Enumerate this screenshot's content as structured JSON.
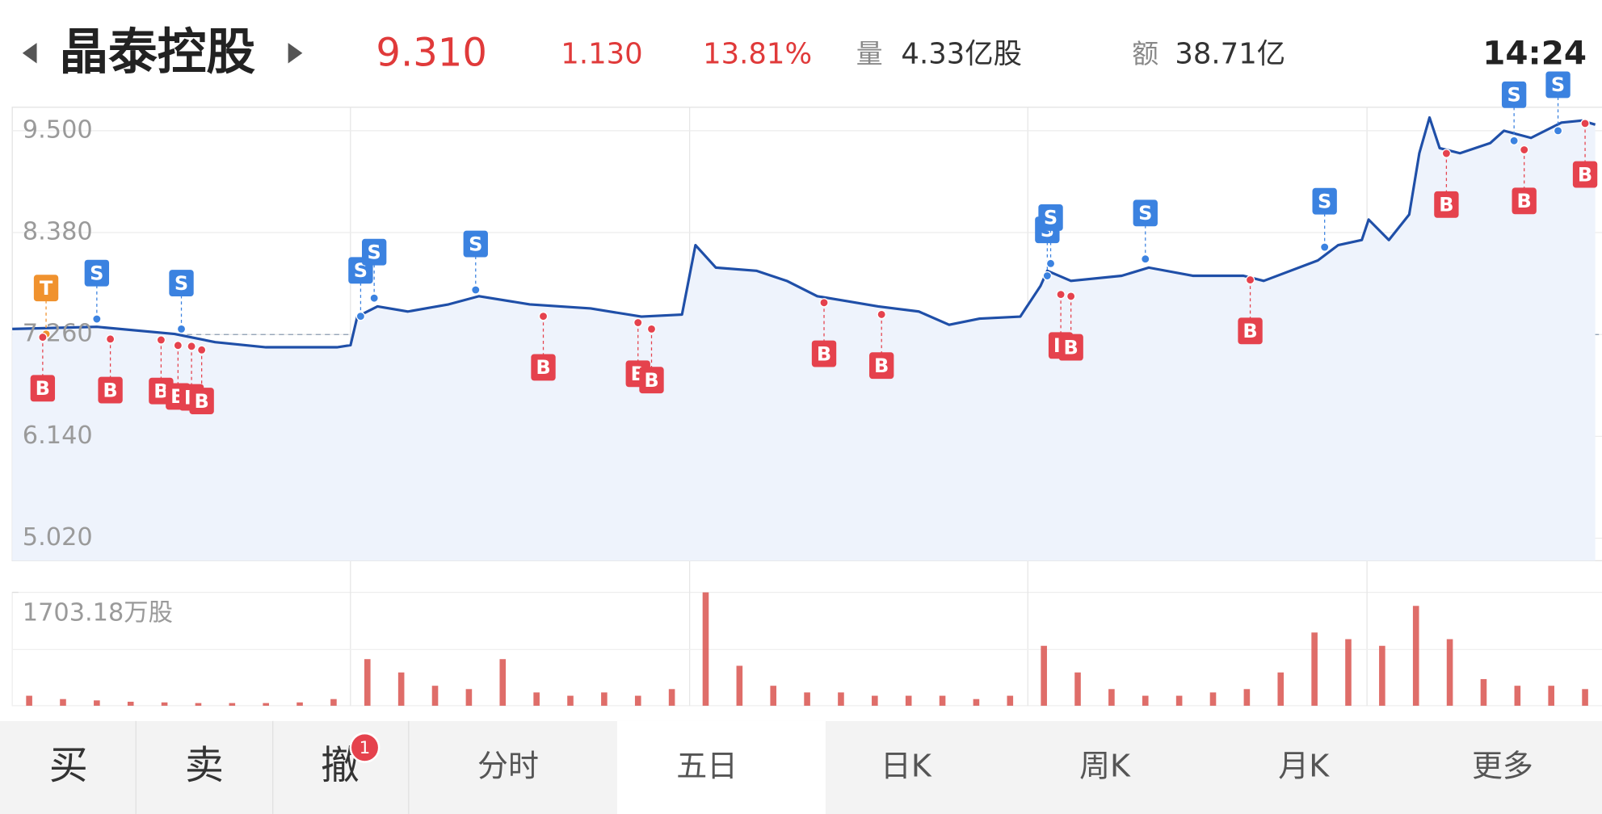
{
  "header": {
    "name": "晶泰控股",
    "price": "9.310",
    "change": "1.130",
    "change_pct": "13.81%",
    "volume_label": "量",
    "volume": "4.33亿股",
    "amount_label": "额",
    "amount": "38.71亿",
    "time": "14:24"
  },
  "chart_data": [
    {
      "type": "line",
      "color": "#1f4fa8",
      "x": [
        0,
        0.25,
        0.48,
        0.6,
        0.75,
        0.96,
        1.0,
        1.02,
        1.08,
        1.17,
        1.29,
        1.38,
        1.53,
        1.71,
        1.86,
        1.98,
        2.02,
        2.08,
        2.2,
        2.29,
        2.38,
        2.47,
        2.56,
        2.68,
        2.77,
        2.86,
        2.98,
        3.04,
        3.06,
        3.13,
        3.28,
        3.36,
        3.49,
        3.64,
        3.7,
        3.86,
        3.92,
        3.99,
        4.01,
        4.07,
        4.13,
        4.16,
        4.19,
        4.22,
        4.28,
        4.37,
        4.41,
        4.49,
        4.58,
        4.64,
        4.68
      ],
      "values": [
        7.321,
        7.344,
        7.265,
        7.176,
        7.119,
        7.119,
        7.142,
        7.456,
        7.569,
        7.512,
        7.591,
        7.681,
        7.591,
        7.546,
        7.456,
        7.479,
        8.242,
        7.995,
        7.961,
        7.849,
        7.681,
        7.625,
        7.569,
        7.512,
        7.366,
        7.434,
        7.456,
        7.793,
        7.961,
        7.849,
        7.905,
        7.995,
        7.905,
        7.905,
        7.849,
        8.074,
        8.242,
        8.298,
        8.523,
        8.298,
        8.579,
        9.253,
        9.646,
        9.309,
        9.253,
        9.365,
        9.5,
        9.421,
        9.59,
        9.612,
        9.567
      ],
      "xlim": [
        0,
        4.7
      ],
      "ylim": [
        4.773,
        9.758
      ],
      "yticks": [
        {
          "value": 9.5,
          "label": "9.500"
        },
        {
          "value": 8.38,
          "label": "8.380"
        },
        {
          "value": 7.26,
          "label": "7.260"
        },
        {
          "value": 6.14,
          "label": "6.140"
        },
        {
          "value": 5.02,
          "label": "5.020"
        }
      ],
      "reference": 7.26,
      "marker_colors": {
        "T": "#f0922e",
        "S": "#3b82e0",
        "B": "#e5424d"
      },
      "markers": [
        {
          "label": "T",
          "x": 0.1,
          "value": 7.265
        },
        {
          "label": "S",
          "x": 0.25,
          "value": 7.43
        },
        {
          "label": "S",
          "x": 0.5,
          "value": 7.32
        },
        {
          "label": "S",
          "x": 1.03,
          "value": 7.46
        },
        {
          "label": "S",
          "x": 1.07,
          "value": 7.66
        },
        {
          "label": "S",
          "x": 1.37,
          "value": 7.75
        },
        {
          "label": "S",
          "x": 3.06,
          "value": 7.905
        },
        {
          "label": "S",
          "x": 3.07,
          "value": 8.04
        },
        {
          "label": "S",
          "x": 3.35,
          "value": 8.09
        },
        {
          "label": "S",
          "x": 3.88,
          "value": 8.22
        },
        {
          "label": "S",
          "x": 4.44,
          "value": 9.39
        },
        {
          "label": "S",
          "x": 4.57,
          "value": 9.5
        },
        {
          "label": "B",
          "x": 0.09,
          "value": 7.23
        },
        {
          "label": "B",
          "x": 0.29,
          "value": 7.21
        },
        {
          "label": "B",
          "x": 0.44,
          "value": 7.2
        },
        {
          "label": "B",
          "x": 0.49,
          "value": 7.14
        },
        {
          "label": "B",
          "x": 0.53,
          "value": 7.13
        },
        {
          "label": "B",
          "x": 0.56,
          "value": 7.09
        },
        {
          "label": "B",
          "x": 1.57,
          "value": 7.46
        },
        {
          "label": "B",
          "x": 1.85,
          "value": 7.39
        },
        {
          "label": "B",
          "x": 1.89,
          "value": 7.32
        },
        {
          "label": "B",
          "x": 2.4,
          "value": 7.61
        },
        {
          "label": "B",
          "x": 2.57,
          "value": 7.48
        },
        {
          "label": "B",
          "x": 3.1,
          "value": 7.7
        },
        {
          "label": "B",
          "x": 3.13,
          "value": 7.68
        },
        {
          "label": "B",
          "x": 3.66,
          "value": 7.86
        },
        {
          "label": "B",
          "x": 4.24,
          "value": 9.25
        },
        {
          "label": "B",
          "x": 4.47,
          "value": 9.29
        },
        {
          "label": "B",
          "x": 4.65,
          "value": 9.58
        }
      ]
    },
    {
      "type": "bar",
      "color": "#d9534f",
      "x": [
        0.05,
        0.15,
        0.25,
        0.35,
        0.45,
        0.55,
        0.65,
        0.75,
        0.85,
        0.95,
        1.05,
        1.15,
        1.25,
        1.35,
        1.45,
        1.55,
        1.65,
        1.75,
        1.85,
        1.95,
        2.05,
        2.15,
        2.25,
        2.35,
        2.45,
        2.55,
        2.65,
        2.75,
        2.85,
        2.95,
        3.05,
        3.15,
        3.25,
        3.35,
        3.45,
        3.55,
        3.65,
        3.75,
        3.85,
        3.95,
        4.05,
        4.15,
        4.25,
        4.35,
        4.45,
        4.55,
        4.65
      ],
      "values": [
        150,
        100,
        80,
        60,
        50,
        40,
        40,
        40,
        50,
        100,
        700,
        500,
        300,
        250,
        700,
        200,
        150,
        200,
        150,
        250,
        1703,
        600,
        300,
        200,
        200,
        150,
        150,
        150,
        100,
        150,
        900,
        500,
        250,
        150,
        150,
        200,
        250,
        500,
        1100,
        1000,
        900,
        1500,
        1000,
        400,
        300,
        300,
        250
      ],
      "xlim": [
        0,
        4.7
      ],
      "ylim": [
        0,
        1703.18
      ],
      "yticks": [
        {
          "value": 1703.18,
          "label": "1703.18万股"
        }
      ]
    }
  ],
  "tabs": {
    "buy": "买",
    "sell": "卖",
    "cancel": "撤",
    "cancel_badge": "1",
    "items": [
      "分时",
      "五日",
      "日K",
      "周K",
      "月K",
      "更多"
    ],
    "active": 1
  }
}
